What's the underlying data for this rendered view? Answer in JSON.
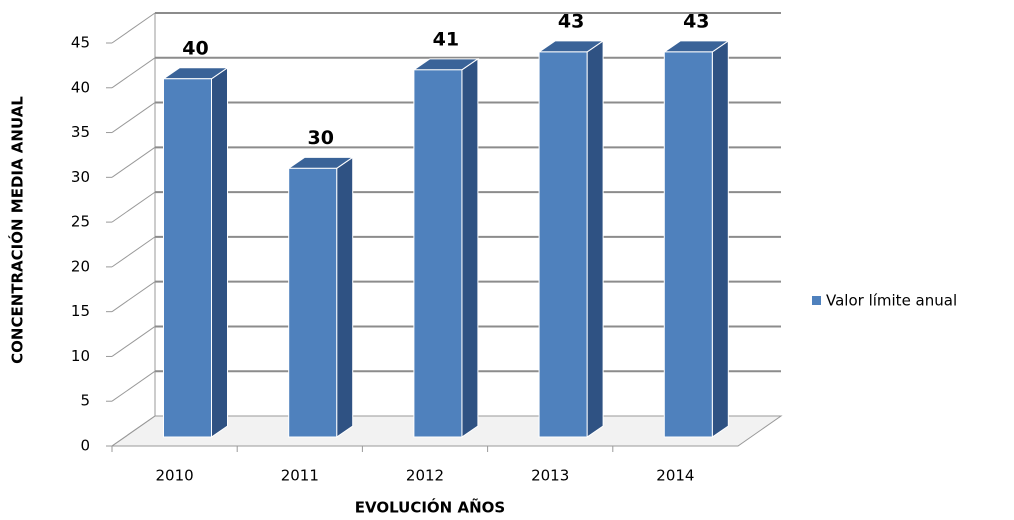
{
  "chart_data": {
    "type": "bar",
    "x_label": "EVOLUCIÓN AÑOS",
    "y_label": "CONCENTRACIÓN MEDIA ANUAL",
    "categories": [
      "2010",
      "2011",
      "2012",
      "2013",
      "2014"
    ],
    "series": [
      {
        "name": "Valor límite anual",
        "color": "#4f81bd",
        "values": [
          40,
          30,
          41,
          43,
          43
        ]
      }
    ],
    "ylim": [
      0,
      45
    ],
    "yticks": [
      0,
      5,
      10,
      15,
      20,
      25,
      30,
      35,
      40,
      45
    ],
    "grid": true,
    "legend": "right"
  }
}
